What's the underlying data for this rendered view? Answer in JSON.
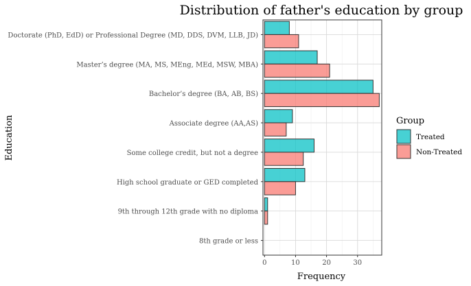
{
  "chart_data": {
    "type": "bar",
    "orientation": "horizontal",
    "title": "Distribution of father's education by group",
    "xlabel": "Frequency",
    "ylabel": "Education",
    "xlim": [
      -0.5,
      37.8
    ],
    "x_ticks": [
      0,
      10,
      20,
      30
    ],
    "grid": true,
    "legend_position": "right",
    "legend_title": "Group",
    "categories": [
      "Doctorate (PhD, EdD) or Professional Degree (MD, DDS, DVM, LLB, JD)",
      "Master’s degree (MA, MS, MEng, MEd, MSW, MBA)",
      "Bachelor’s degree (BA, AB, BS)",
      "Associate degree (AA,AS)",
      "Some college credit, but not a degree",
      "High school graduate or GED completed",
      "9th through 12th grade with no diploma",
      "8th grade or less"
    ],
    "series": [
      {
        "name": "Treated",
        "color": "#00BFC4",
        "values": [
          8,
          17,
          35,
          9,
          16,
          13,
          1,
          0
        ]
      },
      {
        "name": "Non-Treated",
        "color": "#F8766D",
        "values": [
          11,
          21,
          37,
          7,
          12.5,
          10,
          1,
          0
        ]
      }
    ]
  }
}
